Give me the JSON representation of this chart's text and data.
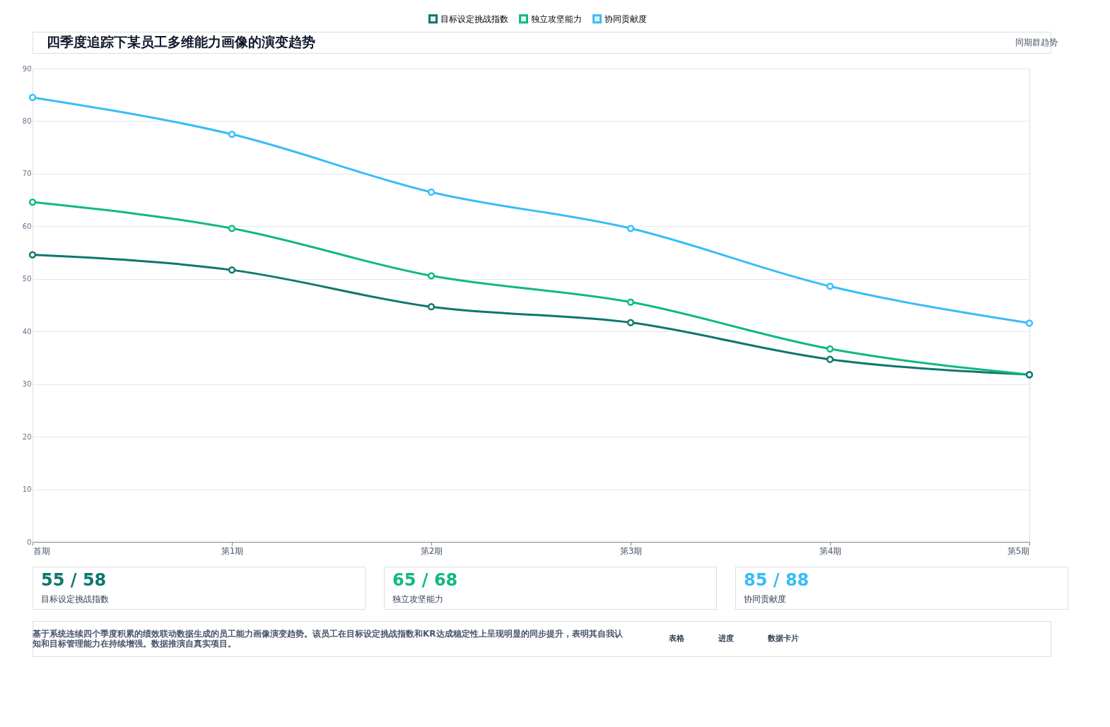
{
  "chart_data": {
    "type": "line",
    "title": "四季度追踪下某员工多维能力画像的演变趋势",
    "subtitle": "同期群趋势",
    "categories": [
      "首期",
      "第1期",
      "第2期",
      "第3期",
      "第4期",
      "第5期"
    ],
    "series": [
      {
        "name": "目标设定挑战指数",
        "color": "#0f766e",
        "values": [
          54.6,
          51.7,
          44.7,
          41.7,
          34.7,
          31.8
        ]
      },
      {
        "name": "独立攻坚能力",
        "color": "#10b981",
        "values": [
          64.6,
          59.6,
          50.6,
          45.6,
          36.7,
          31.8
        ]
      },
      {
        "name": "协同贡献度",
        "color": "#38bdf8",
        "values": [
          84.5,
          77.5,
          66.5,
          59.6,
          48.6,
          41.6
        ]
      }
    ],
    "ylim": [
      0,
      90
    ],
    "yticks": [
      0,
      10,
      20,
      30,
      40,
      50,
      60,
      70,
      80,
      90
    ],
    "grid": "y",
    "legend": "top",
    "marker": "circle",
    "line_style": "solid",
    "annotations": [
      "55 / 58",
      "目标设定挑战指数",
      "65 / 68",
      "独立攻坚能力",
      "85 / 88",
      "协同贡献度",
      "基于系统连续四个季度积累的绩效联动数据生成的员工能力画像演变趋势。该员工在目标设定挑战指数和KR达成稳定性上呈现明显的同步提升，表明其自我认知和目标管理能力在持续增强。数据推演自真实项目。",
      "表格",
      "进度",
      "数据卡片"
    ]
  }
}
